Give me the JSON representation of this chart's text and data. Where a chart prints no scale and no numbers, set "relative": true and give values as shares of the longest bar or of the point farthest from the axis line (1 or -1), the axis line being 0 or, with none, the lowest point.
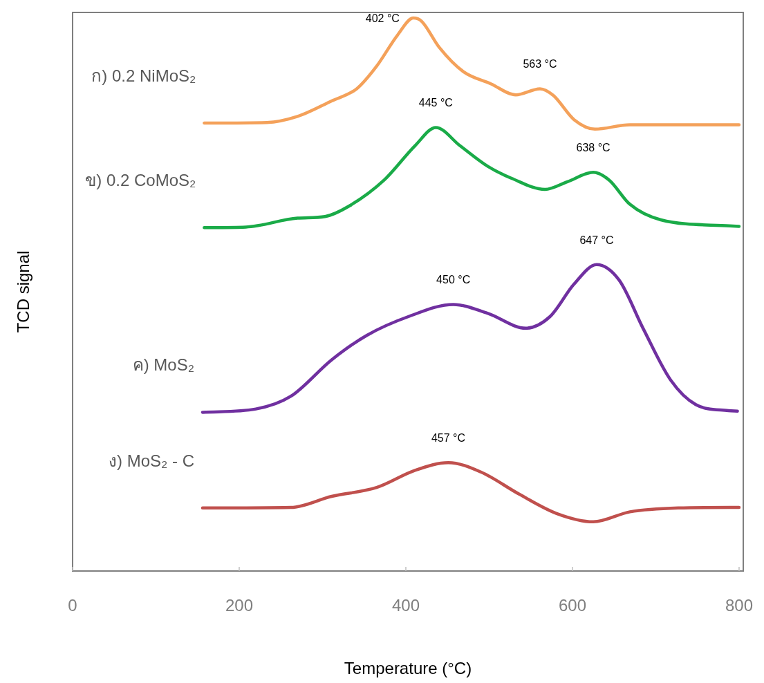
{
  "chart_data": {
    "type": "line",
    "relative": true,
    "xlabel": "Temperature (°C)",
    "ylabel": "TCD signal",
    "xlim": [
      0,
      805
    ],
    "xticks": [
      0,
      200,
      400,
      600,
      800
    ],
    "series": [
      {
        "name": "ก) 0.2 NiMoS₂",
        "color": "#f4a15a",
        "x": [
          158,
          233,
          270,
          311,
          341,
          365,
          390,
          409,
          419,
          440,
          469,
          502,
          532,
          561,
          577,
          602,
          627,
          669,
          789,
          800
        ],
        "values": [
          0.81,
          0.811,
          0.822,
          0.85,
          0.872,
          0.913,
          0.969,
          1.0,
          0.994,
          0.947,
          0.903,
          0.881,
          0.861,
          0.872,
          0.86,
          0.816,
          0.799,
          0.807,
          0.807,
          0.807
        ]
      },
      {
        "name": "ข) 0.2 CoMoS₂",
        "color": "#1aab48",
        "x": [
          158,
          208,
          270,
          303,
          332,
          374,
          411,
          436,
          465,
          498,
          527,
          567,
          594,
          625,
          644,
          669,
          706,
          789,
          800
        ],
        "values": [
          0.621,
          0.622,
          0.638,
          0.641,
          0.66,
          0.707,
          0.769,
          0.802,
          0.769,
          0.732,
          0.71,
          0.69,
          0.704,
          0.721,
          0.707,
          0.663,
          0.635,
          0.624,
          0.623
        ]
      },
      {
        "name": "ค)  MoS₂",
        "color": "#7030a0",
        "x": [
          156,
          220,
          262,
          311,
          353,
          403,
          457,
          498,
          544,
          573,
          602,
          629,
          656,
          685,
          718,
          748,
          787,
          798
        ],
        "values": [
          0.287,
          0.293,
          0.316,
          0.382,
          0.426,
          0.46,
          0.482,
          0.466,
          0.439,
          0.46,
          0.519,
          0.554,
          0.526,
          0.438,
          0.345,
          0.301,
          0.29,
          0.289
        ]
      },
      {
        "name": "ง)  MoS₂ - C",
        "color": "#c0504d",
        "x": [
          156,
          262,
          311,
          365,
          411,
          451,
          490,
          536,
          581,
          625,
          669,
          727,
          789,
          800
        ],
        "values": [
          0.114,
          0.115,
          0.135,
          0.151,
          0.182,
          0.196,
          0.179,
          0.139,
          0.104,
          0.089,
          0.107,
          0.114,
          0.115,
          0.115
        ]
      }
    ],
    "annotations": [
      "402 °C",
      "563 °C",
      "445 °C",
      "638 °C",
      "450 °C",
      "647 °C",
      "457 °C"
    ]
  }
}
